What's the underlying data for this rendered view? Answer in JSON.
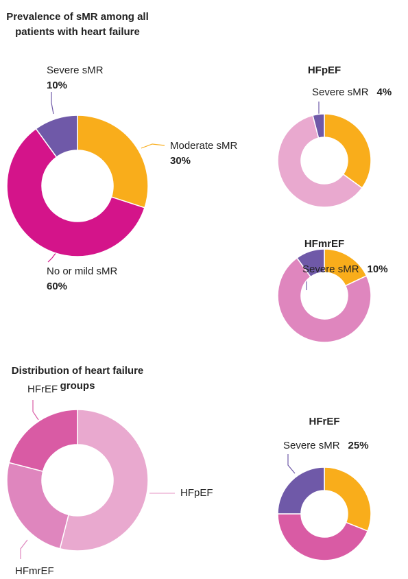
{
  "chart_data": [
    {
      "type": "pie",
      "title": "Prevalence of sMR among all patients with heart failure",
      "categories": [
        "Moderate sMR",
        "No or mild sMR",
        "Severe sMR"
      ],
      "values": [
        30,
        60,
        10
      ],
      "value_labels": [
        "30%",
        "60%",
        "10%"
      ],
      "colors": [
        "#f9ad1b",
        "#d4148a",
        "#6f59a8"
      ]
    },
    {
      "type": "pie",
      "title": "Distribution of heart failure groups",
      "categories": [
        "HFpEF",
        "HFmrEF",
        "HFrEF"
      ],
      "values": [
        54,
        25,
        21
      ],
      "colors": [
        "#e9a9cf",
        "#df86be",
        "#d95ba4"
      ]
    },
    {
      "type": "pie",
      "title": "HFpEF",
      "categories": [
        null,
        null,
        "Severe sMR"
      ],
      "values": [
        35,
        61,
        4
      ],
      "value_labels": [
        null,
        null,
        "4%"
      ],
      "colors": [
        "#f9ad1b",
        "#e9a9cf",
        "#6f59a8"
      ]
    },
    {
      "type": "pie",
      "title": "HFmrEF",
      "categories": [
        null,
        null,
        "Severe sMR"
      ],
      "values": [
        18,
        72,
        10
      ],
      "value_labels": [
        null,
        null,
        "10%"
      ],
      "colors": [
        "#f9ad1b",
        "#df86be",
        "#6f59a8"
      ]
    },
    {
      "type": "pie",
      "title": "HFrEF",
      "categories": [
        null,
        null,
        "Severe sMR"
      ],
      "values": [
        31,
        44,
        25
      ],
      "value_labels": [
        null,
        null,
        "25%"
      ],
      "colors": [
        "#f9ad1b",
        "#d95ba4",
        "#6f59a8"
      ]
    }
  ]
}
